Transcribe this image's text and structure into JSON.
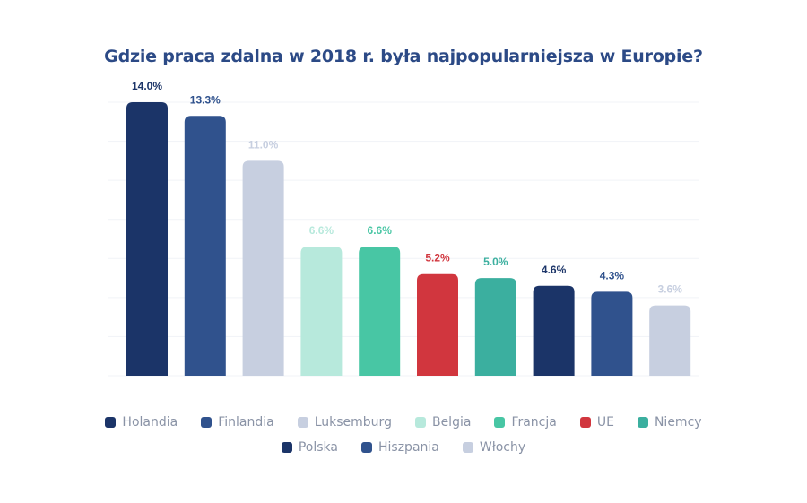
{
  "chart_data": {
    "type": "bar",
    "title": "Gdzie praca zdalna w 2018 r. była najpopularniejsza w Europie?",
    "categories": [
      "Holandia",
      "Finlandia",
      "Luksemburg",
      "Belgia",
      "Francja",
      "UE",
      "Niemcy",
      "Polska",
      "Hiszpania",
      "Włochy"
    ],
    "values": [
      14.0,
      13.3,
      11.0,
      6.6,
      6.6,
      5.2,
      5.0,
      4.6,
      4.3,
      3.6
    ],
    "value_labels": [
      "14.0%",
      "13.3%",
      "11.0%",
      "6.6%",
      "6.6%",
      "5.2%",
      "5.0%",
      "4.6%",
      "4.3%",
      "3.6%"
    ],
    "colors": [
      "#1b3468",
      "#30528d",
      "#c7cfe0",
      "#b7e9dc",
      "#48c6a4",
      "#d1363e",
      "#3baf9f",
      "#1b3468",
      "#30528d",
      "#c7cfe0"
    ],
    "label_colors": [
      "#1b3468",
      "#30528d",
      "#c7cfe0",
      "#b7e9dc",
      "#48c6a4",
      "#d1363e",
      "#3baf9f",
      "#1b3468",
      "#30528d",
      "#c7cfe0"
    ],
    "ylim": [
      0,
      14
    ],
    "grid": true,
    "legend_position": "bottom"
  }
}
